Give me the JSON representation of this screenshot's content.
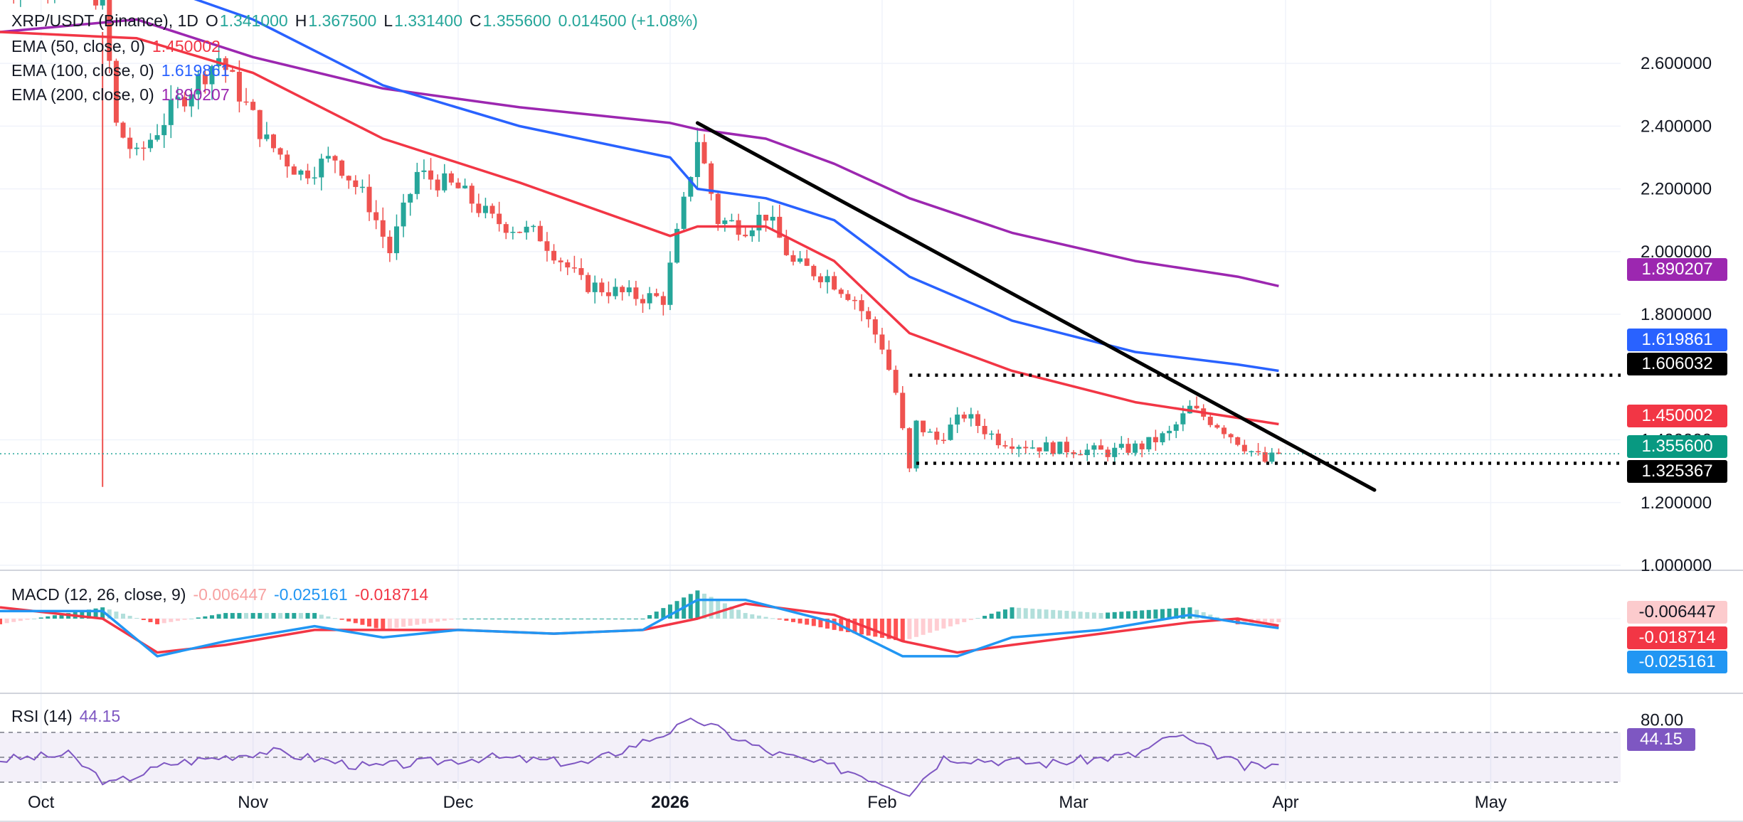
{
  "header": {
    "symbol": "XRP/USDT (Binance), 1D",
    "o_label": "O",
    "o_value": "1.341000",
    "h_label": "H",
    "h_value": "1.367500",
    "l_label": "L",
    "l_value": "1.331400",
    "c_label": "C",
    "c_value": "1.355600",
    "change": "0.014500 (+1.08%)"
  },
  "indicators": {
    "ema50": {
      "label": "EMA (50, close, 0)",
      "value": "1.450002"
    },
    "ema100": {
      "label": "EMA (100, close, 0)",
      "value": "1.619861"
    },
    "ema200": {
      "label": "EMA (200, close, 0)",
      "value": "1.890207"
    },
    "macd": {
      "label": "MACD (12, 26, close, 9)",
      "hist": "-0.006447",
      "macd": "-0.025161",
      "signal": "-0.018714"
    },
    "rsi": {
      "label": "RSI (14)",
      "value": "44.15"
    }
  },
  "colors": {
    "up": "#26a69a",
    "down": "#ef5350",
    "ema50": "#f23645",
    "ema100": "#2962ff",
    "ema200": "#9c27b0",
    "macd": "#2196f3",
    "signal": "#f23645",
    "rsi": "#7e57c2",
    "trendline": "#000000"
  },
  "price_badges": {
    "ema200": "1.890207",
    "ema100": "1.619861",
    "resistance": "1.606032",
    "ema50": "1.450002",
    "last": "1.355600",
    "support": "1.325367",
    "macd_hist": "-0.006447",
    "signal": "-0.018714",
    "macd": "-0.025161",
    "rsi": "44.15"
  },
  "chart_data": {
    "type": "candlestick",
    "title": "XRP/USDT (Binance), 1D",
    "x_axis": {
      "type": "date",
      "range": [
        "2025-09-25",
        "2026-05-20"
      ],
      "tick_labels": [
        "Oct",
        "Nov",
        "Dec",
        "2026",
        "Feb",
        "Mar",
        "Apr",
        "May"
      ],
      "tick_dates": [
        "2025-10-01",
        "2025-11-01",
        "2025-12-01",
        "2026-01-01",
        "2026-02-01",
        "2026-03-01",
        "2026-04-01",
        "2026-05-01"
      ]
    },
    "y_axis": {
      "range": [
        1.0,
        2.7
      ],
      "tick_labels": [
        "2.600000",
        "2.400000",
        "2.200000",
        "2.000000",
        "1.800000",
        "1.400000",
        "1.200000",
        "1.000000"
      ],
      "tick_values": [
        2.6,
        2.4,
        2.2,
        2.0,
        1.8,
        1.4,
        1.2,
        1.0
      ]
    },
    "grid": true,
    "anchors": {
      "dates": [
        "2025-09-25",
        "2025-10-05",
        "2025-10-10",
        "2025-10-12",
        "2025-10-15",
        "2025-10-20",
        "2025-10-27",
        "2025-11-03",
        "2025-11-08",
        "2025-11-13",
        "2025-11-18",
        "2025-11-21",
        "2025-11-25",
        "2025-12-01",
        "2025-12-06",
        "2025-12-13",
        "2025-12-19",
        "2025-12-26",
        "2025-12-31",
        "2026-01-03",
        "2026-01-05",
        "2026-01-08",
        "2026-01-12",
        "2026-01-15",
        "2026-01-19",
        "2026-01-24",
        "2026-01-28",
        "2026-02-01",
        "2026-02-03",
        "2026-02-05",
        "2026-02-06",
        "2026-02-09",
        "2026-02-13",
        "2026-02-18",
        "2026-02-23",
        "2026-03-01",
        "2026-03-06",
        "2026-03-11",
        "2026-03-15",
        "2026-03-18",
        "2026-03-22",
        "2026-03-26",
        "2026-03-29",
        "2026-03-31"
      ],
      "close": [
        2.85,
        2.9,
        2.8,
        2.4,
        2.3,
        2.45,
        2.62,
        2.35,
        2.25,
        2.3,
        2.15,
        2.0,
        2.25,
        2.2,
        2.1,
        2.05,
        1.9,
        1.86,
        1.85,
        2.15,
        2.36,
        2.1,
        2.08,
        2.12,
        1.96,
        1.92,
        1.85,
        1.7,
        1.55,
        1.3,
        1.45,
        1.4,
        1.48,
        1.4,
        1.38,
        1.37,
        1.36,
        1.38,
        1.42,
        1.5,
        1.45,
        1.38,
        1.33,
        1.3556
      ]
    },
    "ema": {
      "dates": [
        "2025-09-25",
        "2025-10-15",
        "2025-11-01",
        "2025-11-20",
        "2025-12-10",
        "2026-01-01",
        "2026-01-05",
        "2026-01-15",
        "2026-01-25",
        "2026-02-05",
        "2026-02-20",
        "2026-03-10",
        "2026-03-25",
        "2026-03-31"
      ],
      "ema50": [
        2.7,
        2.68,
        2.57,
        2.36,
        2.22,
        2.05,
        2.08,
        2.08,
        1.97,
        1.74,
        1.62,
        1.52,
        1.47,
        1.450002
      ],
      "ema100": [
        2.88,
        2.87,
        2.74,
        2.53,
        2.4,
        2.3,
        2.2,
        2.17,
        2.1,
        1.92,
        1.78,
        1.68,
        1.64,
        1.619861
      ],
      "ema200": [
        2.7,
        2.74,
        2.62,
        2.52,
        2.46,
        2.41,
        2.39,
        2.36,
        2.28,
        2.17,
        2.06,
        1.97,
        1.92,
        1.890207
      ]
    },
    "levels": {
      "resistance": {
        "value": 1.606032,
        "from": "2026-02-05"
      },
      "support": {
        "value": 1.325367,
        "from": "2026-02-06"
      },
      "last": 1.3556
    },
    "trendline": {
      "from": [
        "2026-01-05",
        2.41
      ],
      "to": [
        "2026-04-14",
        1.24
      ]
    },
    "macd": {
      "dates": [
        "2025-09-25",
        "2025-10-10",
        "2025-10-18",
        "2025-10-28",
        "2025-11-10",
        "2025-11-20",
        "2025-12-01",
        "2025-12-15",
        "2025-12-28",
        "2026-01-05",
        "2026-01-12",
        "2026-01-25",
        "2026-02-04",
        "2026-02-12",
        "2026-02-20",
        "2026-03-05",
        "2026-03-18",
        "2026-03-25",
        "2026-03-31"
      ],
      "macd": [
        0.02,
        0.02,
        -0.1,
        -0.06,
        -0.02,
        -0.05,
        -0.03,
        -0.04,
        -0.03,
        0.05,
        0.05,
        -0.01,
        -0.1,
        -0.1,
        -0.05,
        -0.03,
        0.01,
        -0.01,
        -0.025161
      ],
      "signal": [
        0.03,
        0.0,
        -0.09,
        -0.07,
        -0.03,
        -0.03,
        -0.03,
        -0.04,
        -0.03,
        0.0,
        0.04,
        0.01,
        -0.06,
        -0.09,
        -0.07,
        -0.04,
        -0.01,
        0.0,
        -0.018714
      ]
    },
    "rsi": {
      "range": [
        0,
        100
      ],
      "tick_labels": [
        "80.00"
      ],
      "bands": [
        30,
        70
      ],
      "dates": [
        "2025-09-25",
        "2025-10-05",
        "2025-10-11",
        "2025-10-20",
        "2025-11-03",
        "2025-11-18",
        "2025-12-05",
        "2025-12-20",
        "2026-01-05",
        "2026-01-15",
        "2026-01-28",
        "2026-02-05",
        "2026-02-10",
        "2026-02-25",
        "2026-03-10",
        "2026-03-16",
        "2026-03-26",
        "2026-03-31"
      ],
      "values": [
        48,
        52,
        28,
        45,
        55,
        42,
        50,
        45,
        80,
        55,
        38,
        22,
        50,
        45,
        52,
        68,
        42,
        44.15
      ]
    }
  }
}
